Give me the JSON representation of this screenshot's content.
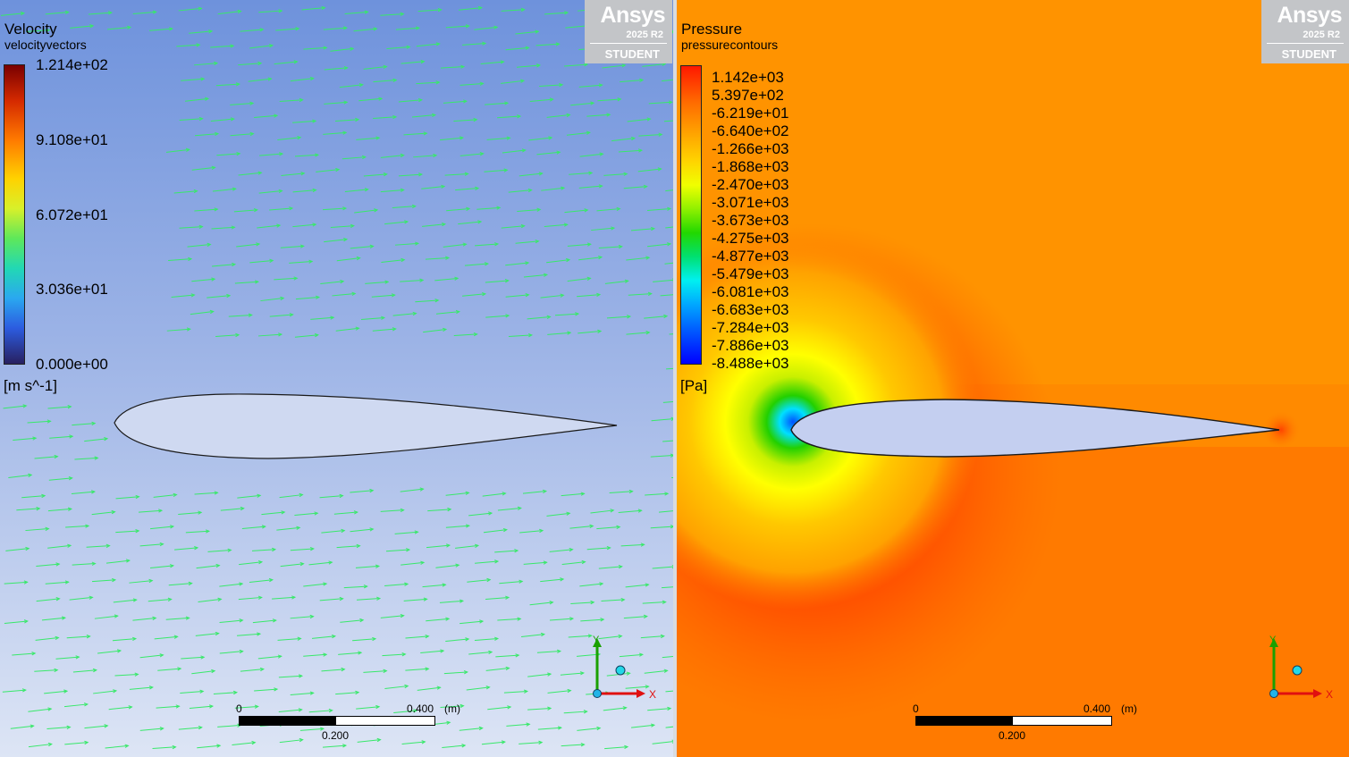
{
  "velocity_view": {
    "legend_title": "Velocity",
    "legend_variable": "velocityvectors",
    "ticks": [
      "1.214e+02",
      "9.108e+01",
      "6.072e+01",
      "3.036e+01",
      "0.000e+00"
    ],
    "unit": "[m s^-1]"
  },
  "pressure_view": {
    "legend_title": "Pressure",
    "legend_variable": "pressurecontours",
    "ticks": [
      "1.142e+03",
      "5.397e+02",
      "-6.219e+01",
      "-6.640e+02",
      "-1.266e+03",
      "-1.868e+03",
      "-2.470e+03",
      "-3.071e+03",
      "-3.673e+03",
      "-4.275e+03",
      "-4.877e+03",
      "-5.479e+03",
      "-6.081e+03",
      "-6.683e+03",
      "-7.284e+03",
      "-7.886e+03",
      "-8.488e+03"
    ],
    "unit": "[Pa]"
  },
  "logo": {
    "brand": "Ansys",
    "version": "2025 R2",
    "edition": "STUDENT"
  },
  "scale": {
    "start": "0",
    "end": "0.400",
    "unit": "(m)",
    "mid": "0.200"
  },
  "axes": {
    "x": "X",
    "y": "Y"
  },
  "colors": {
    "vector_default": "#38e86a",
    "pressure_background": "#ff8a00",
    "airfoil_fill": "#c4cff0"
  }
}
